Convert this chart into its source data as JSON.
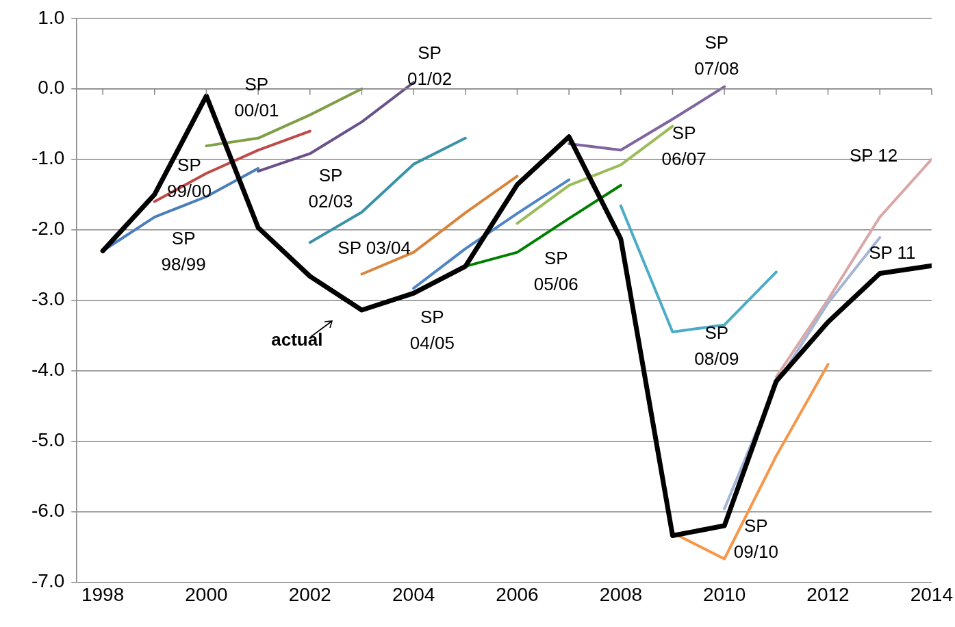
{
  "chart_data": {
    "type": "line",
    "xlim": [
      1997.5,
      2014
    ],
    "xticks": [
      1998,
      {
        "value": 1999,
        "label": null
      },
      2000,
      {
        "value": 2001,
        "label": null
      },
      2002,
      {
        "value": 2003,
        "label": null
      },
      2004,
      {
        "value": 2005,
        "label": null
      },
      2006,
      {
        "value": 2007,
        "label": null
      },
      2008,
      {
        "value": 2009,
        "label": null
      },
      2010,
      {
        "value": 2011,
        "label": null
      },
      2012,
      {
        "value": 2013,
        "label": null
      },
      2014
    ],
    "ylim": [
      -7,
      1
    ],
    "yticks": [
      {
        "value": -7,
        "label": "-7.0"
      },
      {
        "value": -6,
        "label": "-6.0"
      },
      {
        "value": -5,
        "label": "-5.0"
      },
      {
        "value": -4,
        "label": "-4.0"
      },
      {
        "value": -3,
        "label": "-3.0"
      },
      {
        "value": -2,
        "label": "-2.0"
      },
      {
        "value": -1,
        "label": "-1.0"
      },
      {
        "value": 0,
        "label": "0.0"
      },
      {
        "value": 1,
        "label": "1.0"
      }
    ],
    "grid": "y",
    "legend": false,
    "marker": "none",
    "line_style": "solid",
    "series": [
      {
        "name": "SP 98/99",
        "color": "#4a7ebb",
        "x": [
          1998,
          1999,
          2000,
          2001
        ],
        "values": [
          -2.3,
          -1.82,
          -1.53,
          -1.13
        ]
      },
      {
        "name": "SP 99/00",
        "color": "#be4b48",
        "x": [
          1999,
          2000,
          2001,
          2002
        ],
        "values": [
          -1.6,
          -1.2,
          -0.87,
          -0.6
        ]
      },
      {
        "name": "SP 00/01",
        "color": "#7f9f45",
        "x": [
          2000,
          2001,
          2002,
          2003
        ],
        "values": [
          -0.81,
          -0.7,
          -0.37,
          0.0
        ]
      },
      {
        "name": "SP 01/02",
        "color": "#6a5189",
        "x": [
          2001,
          2002,
          2003,
          2004
        ],
        "values": [
          -1.17,
          -0.92,
          -0.47,
          0.09
        ]
      },
      {
        "name": "SP 02/03",
        "color": "#3a92a6",
        "x": [
          2002,
          2003,
          2004,
          2005
        ],
        "values": [
          -2.18,
          -1.75,
          -1.07,
          -0.7
        ]
      },
      {
        "name": "SP 03/04",
        "color": "#d8843a",
        "x": [
          2003,
          2004,
          2005,
          2006
        ],
        "values": [
          -2.63,
          -2.32,
          -1.76,
          -1.24
        ]
      },
      {
        "name": "SP 04/05",
        "color": "#4f85c6",
        "x": [
          2004,
          2005,
          2006,
          2007
        ],
        "values": [
          -2.83,
          -2.27,
          -1.77,
          -1.29
        ]
      },
      {
        "name": "SP 05/06",
        "color": "#008000",
        "x": [
          2005,
          2006,
          2007,
          2008
        ],
        "values": [
          -2.52,
          -2.32,
          -1.84,
          -1.37
        ]
      },
      {
        "name": "SP 06/07",
        "color": "#9bbb59",
        "x": [
          2006,
          2007,
          2008,
          2009
        ],
        "values": [
          -1.91,
          -1.37,
          -1.08,
          -0.53
        ]
      },
      {
        "name": "SP 07/08",
        "color": "#8064a2",
        "x": [
          2007,
          2008,
          2009,
          2010
        ],
        "values": [
          -0.78,
          -0.87,
          -0.43,
          0.03
        ]
      },
      {
        "name": "SP 08/09",
        "color": "#4bacc6",
        "x": [
          2008,
          2009,
          2010,
          2011
        ],
        "values": [
          -1.66,
          -3.45,
          -3.35,
          -2.6
        ]
      },
      {
        "name": "SP 09/10",
        "color": "#f79646",
        "x": [
          2009,
          2010,
          2011,
          2012
        ],
        "values": [
          -6.3,
          -6.67,
          -5.21,
          -3.91
        ]
      },
      {
        "name": "SP 11",
        "color": "#a5b5d5",
        "x": [
          2010,
          2011,
          2012,
          2013
        ],
        "values": [
          -5.96,
          -4.19,
          -3.04,
          -2.11
        ]
      },
      {
        "name": "SP 12",
        "color": "#d9a8a6",
        "x": [
          2011,
          2012,
          2013,
          2014
        ],
        "values": [
          -4.09,
          -2.99,
          -1.82,
          -1.0
        ]
      },
      {
        "name": "actual",
        "color": "#000000",
        "x": [
          1998,
          1999,
          2000,
          2001,
          2002,
          2003,
          2004,
          2005,
          2006,
          2007,
          2008,
          2009,
          2010,
          2011,
          2012,
          2013,
          2014
        ],
        "values": [
          -2.3,
          -1.5,
          -0.1,
          -1.97,
          -2.66,
          -3.14,
          -2.9,
          -2.52,
          -1.36,
          -0.68,
          -2.13,
          -6.34,
          -6.2,
          -4.15,
          -3.31,
          -2.62,
          -2.51
        ]
      }
    ]
  }
}
